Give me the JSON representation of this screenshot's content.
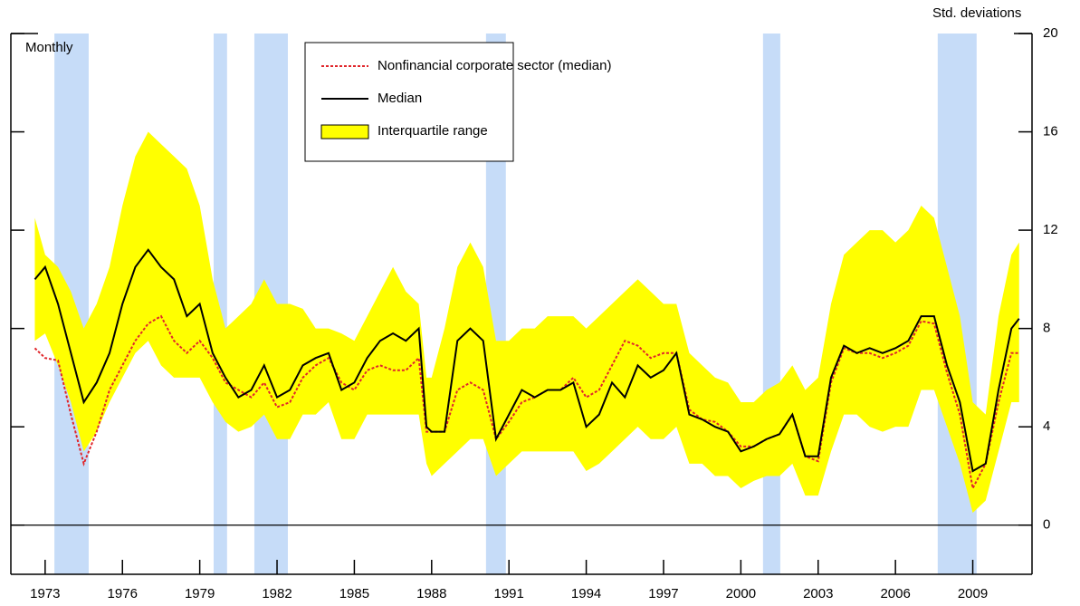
{
  "chart_data": {
    "type": "line",
    "y_axis_label": "Std. deviations",
    "annotation": "Monthly",
    "x": [
      1972.6,
      1973,
      1973.5,
      1974,
      1974.5,
      1975,
      1975.5,
      1976,
      1976.5,
      1977,
      1977.5,
      1978,
      1978.5,
      1979,
      1979.5,
      1980,
      1980.5,
      1981,
      1981.5,
      1982,
      1982.5,
      1983,
      1983.5,
      1984,
      1984.5,
      1985,
      1985.5,
      1986,
      1986.5,
      1987,
      1987.5,
      1987.8,
      1988,
      1988.5,
      1989,
      1989.5,
      1990,
      1990.5,
      1991,
      1991.5,
      1992,
      1992.5,
      1993,
      1993.5,
      1994,
      1994.5,
      1995,
      1995.5,
      1996,
      1996.5,
      1997,
      1997.5,
      1998,
      1998.5,
      1999,
      1999.5,
      2000,
      2000.5,
      2001,
      2001.5,
      2002,
      2002.5,
      2003,
      2003.5,
      2004,
      2004.5,
      2005,
      2005.5,
      2006,
      2006.5,
      2007,
      2007.5,
      2008,
      2008.5,
      2009,
      2009.5,
      2010,
      2010.5,
      2010.8
    ],
    "series": [
      {
        "name": "Nonfinancial corporate sector (median)",
        "color": "#e0262b",
        "dashed": true,
        "values": [
          7.2,
          6.8,
          6.7,
          4.5,
          2.5,
          3.8,
          5.5,
          6.5,
          7.5,
          8.2,
          8.5,
          7.5,
          7.0,
          7.5,
          6.8,
          5.8,
          5.5,
          5.2,
          5.8,
          4.8,
          5.0,
          6.0,
          6.5,
          6.8,
          5.8,
          5.5,
          6.3,
          6.5,
          6.3,
          6.3,
          6.8,
          3.8,
          3.8,
          3.8,
          5.5,
          5.8,
          5.5,
          3.5,
          4.2,
          5.0,
          5.2,
          5.5,
          5.5,
          6.0,
          5.2,
          5.5,
          6.5,
          7.5,
          7.3,
          6.8,
          7.0,
          7.0,
          4.7,
          4.3,
          4.2,
          3.8,
          3.2,
          3.2,
          3.5,
          3.7,
          4.5,
          2.8,
          2.6,
          5.8,
          7.2,
          7.0,
          7.0,
          6.8,
          7.0,
          7.3,
          8.3,
          8.2,
          6.2,
          4.5,
          1.5,
          2.5,
          5.0,
          7.0,
          7.0
        ]
      },
      {
        "name": "Median",
        "color": "#000000",
        "values": [
          10.0,
          10.5,
          9.0,
          7.0,
          5.0,
          5.8,
          7.0,
          9.0,
          10.5,
          11.2,
          10.5,
          10.0,
          8.5,
          9.0,
          7.0,
          6.0,
          5.2,
          5.5,
          6.5,
          5.2,
          5.5,
          6.5,
          6.8,
          7.0,
          5.5,
          5.8,
          6.8,
          7.5,
          7.8,
          7.5,
          8.0,
          4.0,
          3.8,
          3.8,
          7.5,
          8.0,
          7.5,
          3.5,
          4.5,
          5.5,
          5.2,
          5.5,
          5.5,
          5.8,
          4.0,
          4.5,
          5.8,
          5.2,
          6.5,
          6.0,
          6.3,
          7.0,
          4.5,
          4.3,
          4.0,
          3.8,
          3.0,
          3.2,
          3.5,
          3.7,
          4.5,
          2.8,
          2.8,
          6.0,
          7.3,
          7.0,
          7.2,
          7.0,
          7.2,
          7.5,
          8.5,
          8.5,
          6.5,
          5.0,
          2.2,
          2.5,
          5.5,
          8.0,
          8.4
        ]
      },
      {
        "name": "Interquartile range",
        "color": "#ffff00",
        "upper": [
          12.5,
          11.0,
          10.5,
          9.5,
          8.0,
          9.0,
          10.5,
          13.0,
          15.0,
          16.0,
          15.5,
          15.0,
          14.5,
          13.0,
          10.0,
          8.0,
          8.5,
          9.0,
          10.0,
          9.0,
          9.0,
          8.8,
          8.0,
          8.0,
          7.8,
          7.5,
          8.5,
          9.5,
          10.5,
          9.5,
          9.0,
          6.0,
          6.0,
          8.0,
          10.5,
          11.5,
          10.5,
          7.5,
          7.5,
          8.0,
          8.0,
          8.5,
          8.5,
          8.5,
          8.0,
          8.5,
          9.0,
          9.5,
          10.0,
          9.5,
          9.0,
          9.0,
          7.0,
          6.5,
          6.0,
          5.8,
          5.0,
          5.0,
          5.5,
          5.8,
          6.5,
          5.5,
          6.0,
          9.0,
          11.0,
          11.5,
          12.0,
          12.0,
          11.5,
          12.0,
          13.0,
          12.5,
          10.5,
          8.5,
          5.0,
          4.5,
          8.5,
          11.0,
          11.5
        ],
        "lower": [
          7.5,
          7.8,
          6.5,
          5.0,
          3.0,
          3.8,
          5.0,
          6.0,
          7.0,
          7.5,
          6.5,
          6.0,
          6.0,
          6.0,
          5.0,
          4.2,
          3.8,
          4.0,
          4.5,
          3.5,
          3.5,
          4.5,
          4.5,
          5.0,
          3.5,
          3.5,
          4.5,
          4.5,
          4.5,
          4.5,
          4.5,
          2.5,
          2.0,
          2.5,
          3.0,
          3.5,
          3.5,
          2.0,
          2.5,
          3.0,
          3.0,
          3.0,
          3.0,
          3.0,
          2.2,
          2.5,
          3.0,
          3.5,
          4.0,
          3.5,
          3.5,
          4.0,
          2.5,
          2.5,
          2.0,
          2.0,
          1.5,
          1.8,
          2.0,
          2.0,
          2.5,
          1.2,
          1.2,
          3.0,
          4.5,
          4.5,
          4.0,
          3.8,
          4.0,
          4.0,
          5.5,
          5.5,
          4.0,
          2.5,
          0.5,
          1.0,
          3.0,
          5.0,
          5.0
        ]
      }
    ],
    "shaded_periods": [
      [
        1973.36,
        1974.69
      ],
      [
        1979.54,
        1980.06
      ],
      [
        1981.12,
        1982.42
      ],
      [
        1990.11,
        1990.88
      ],
      [
        2000.86,
        2001.53
      ],
      [
        2007.64,
        2009.15
      ]
    ],
    "shade_color": "#c6dcf8",
    "xlim": [
      1971.67,
      2011.3
    ],
    "xticks": [
      1973,
      1976,
      1979,
      1982,
      1985,
      1988,
      1991,
      1994,
      1997,
      2000,
      2003,
      2006,
      2009
    ],
    "ylim": [
      -2,
      20
    ],
    "yticks": [
      0,
      4,
      8,
      12,
      16,
      20
    ]
  }
}
